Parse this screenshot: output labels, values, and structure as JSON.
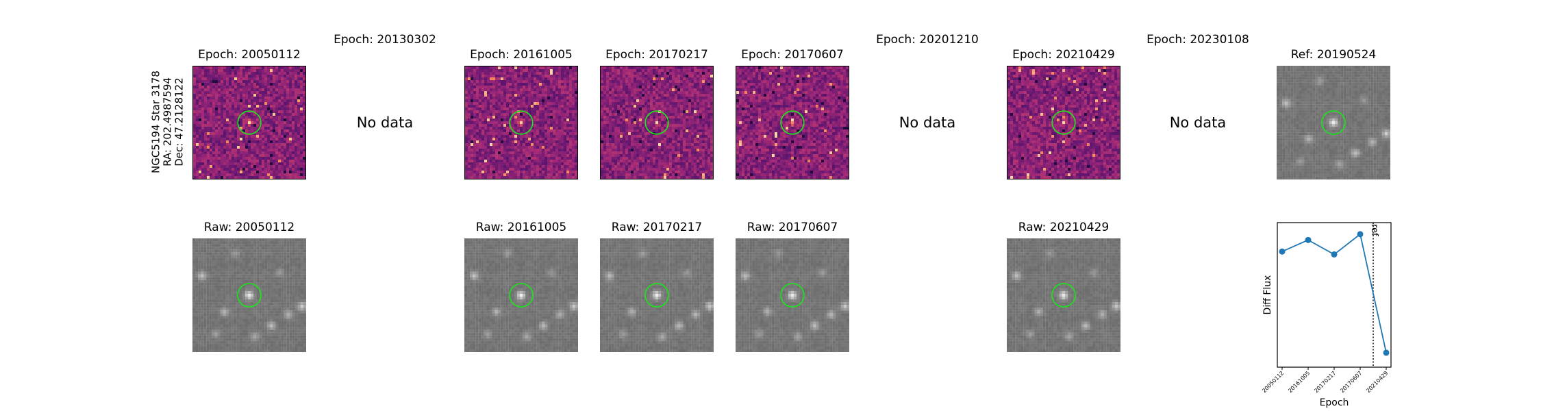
{
  "object": {
    "name": "NGC5194 Star 3178",
    "ra": "RA: 202.4987594",
    "dec": "Dec: 47.2128122"
  },
  "no_data_label": "No data",
  "diff_row": [
    {
      "label": "Epoch: 20050112",
      "has_data": true
    },
    {
      "label": "Epoch: 20130302",
      "has_data": false
    },
    {
      "label": "Epoch: 20161005",
      "has_data": true
    },
    {
      "label": "Epoch: 20170217",
      "has_data": true
    },
    {
      "label": "Epoch: 20170607",
      "has_data": true
    },
    {
      "label": "Epoch: 20201210",
      "has_data": false
    },
    {
      "label": "Epoch: 20210429",
      "has_data": true
    },
    {
      "label": "Epoch: 20230108",
      "has_data": false
    },
    {
      "label": "Ref: 20190524",
      "has_data": true,
      "is_ref": true
    }
  ],
  "raw_row": [
    {
      "label": "Raw: 20050112",
      "col": 0
    },
    {
      "label": "Raw: 20161005",
      "col": 2
    },
    {
      "label": "Raw: 20170217",
      "col": 3
    },
    {
      "label": "Raw: 20170607",
      "col": 4
    },
    {
      "label": "Raw: 20210429",
      "col": 6
    }
  ],
  "colors": {
    "marker_circle": "#22dd22",
    "series": "#1f77b4",
    "ref_line": "#000000"
  },
  "chart_data": {
    "type": "line",
    "title": "",
    "xlabel": "Epoch",
    "ylabel": "Diff Flux",
    "categories": [
      "20050112",
      "20161005",
      "20170217",
      "20170607",
      "20210429"
    ],
    "series": [
      {
        "name": "Diff Flux",
        "values": [
          0.8,
          0.88,
          0.78,
          0.92,
          0.1
        ]
      }
    ],
    "ylim": [
      0.0,
      1.0
    ],
    "ref_line": {
      "position_between": [
        "20170607",
        "20210429"
      ],
      "fraction": 0.5,
      "label": "ref"
    },
    "grid": false,
    "legend": "none"
  }
}
